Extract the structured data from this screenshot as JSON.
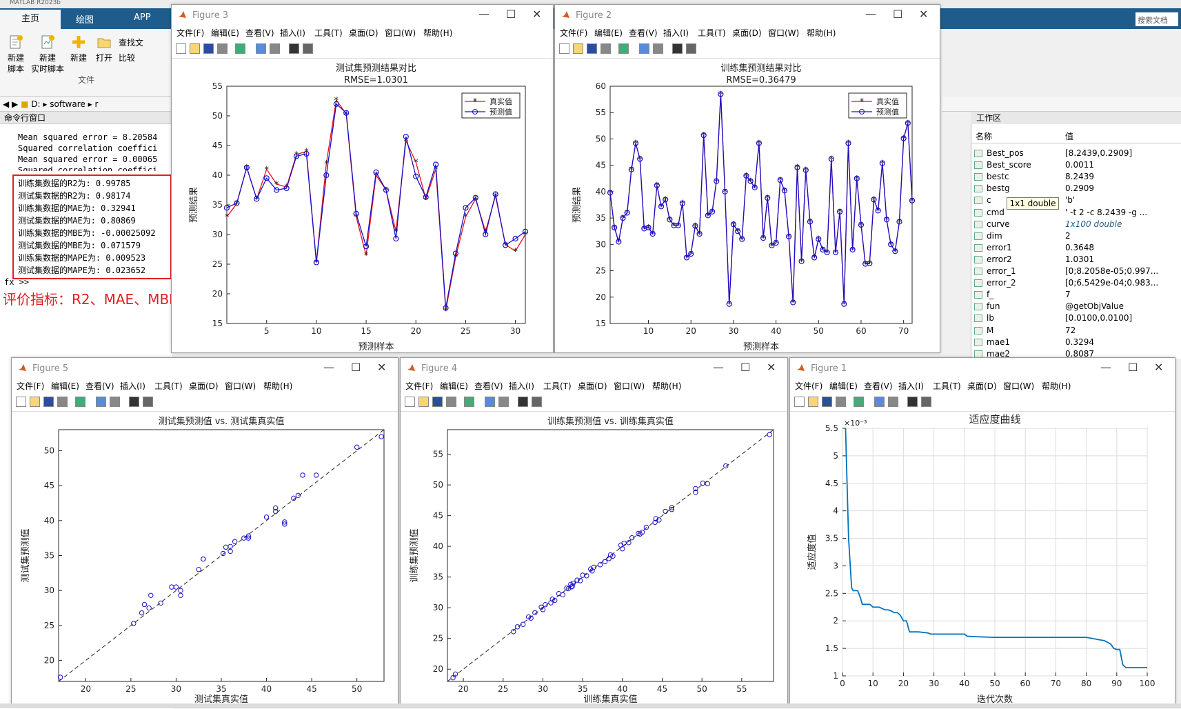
{
  "app": {
    "window_title": "MATLAB R2023b",
    "tabs": [
      "主页",
      "绘图",
      "APP"
    ],
    "ribbon": {
      "new_script": "新建\n脚本",
      "new_live": "新建\n实时脚本",
      "new": "新建",
      "open": "打开",
      "find": "查找文",
      "compare": "比较",
      "section": "文件"
    },
    "search_placeholder": "搜索文档",
    "path": [
      "D:",
      "software",
      "r"
    ]
  },
  "cmd": {
    "title": "命令行窗口",
    "lines": [
      "Mean squared error = 8.20584",
      "Squared correlation coeffici",
      "Mean squared error = 0.00065",
      "Squared correlation coeffici"
    ],
    "metrics": [
      "训练集数据的R2为: 0.99785",
      "测试集数据的R2为: 0.98174",
      "训练集数据的MAE为: 0.32941",
      "测试集数据的MAE为: 0.80869",
      "训练集数据的MBE为: -0.00025092",
      "测试集数据的MBE为: 0.071579",
      "训练集数据的MAPE为: 0.009523",
      "测试集数据的MAPE为: 0.023652"
    ],
    "prompt": "fx >>",
    "annotation": "评价指标：R2、MAE、MBE、MAPE"
  },
  "workspace": {
    "title": "工作区",
    "col_name": "名称",
    "col_value": "值",
    "tooltip": "1x1 double",
    "rows": [
      [
        "Best_pos",
        "[8.2439,0.2909]"
      ],
      [
        "Best_score",
        "0.0011"
      ],
      [
        "bestc",
        "8.2439"
      ],
      [
        "bestg",
        "0.2909"
      ],
      [
        "c",
        "'b'"
      ],
      [
        "cmd",
        "' -t 2  -c 8.2439 -g ..."
      ],
      [
        "curve",
        "1x100 double"
      ],
      [
        "dim",
        "2"
      ],
      [
        "error1",
        "0.3648"
      ],
      [
        "error2",
        "1.0301"
      ],
      [
        "error_1",
        "[0;8.2058e-05;0.997..."
      ],
      [
        "error_2",
        "[0;6.5429e-04;0.983..."
      ],
      [
        "f_",
        "7"
      ],
      [
        "fun",
        "@getObjValue"
      ],
      [
        "lb",
        "[0.0100,0.0100]"
      ],
      [
        "M",
        "72"
      ],
      [
        "mae1",
        "0.3294"
      ],
      [
        "mae2",
        "0.8087"
      ]
    ]
  },
  "figure_menu": [
    "文件(F)",
    "编辑(E)",
    "查看(V)",
    "插入(I)",
    "工具(T)",
    "桌面(D)",
    "窗口(W)",
    "帮助(H)"
  ],
  "figures": {
    "fig3": {
      "window_title": "Figure 3"
    },
    "fig2": {
      "window_title": "Figure 2"
    },
    "fig5": {
      "window_title": "Figure 5"
    },
    "fig4": {
      "window_title": "Figure 4"
    },
    "fig1": {
      "window_title": "Figure 1"
    }
  },
  "colors": {
    "true": "#e8101a",
    "pred": "#1a10c8",
    "curve": "#0072bd",
    "annotation": "#e02020",
    "ribbon": "#1f5c8b"
  },
  "chart_data": [
    {
      "id": "fig3",
      "type": "line",
      "title": "测试集预测结果对比",
      "subtitle": "RMSE=1.0301",
      "xlabel": "预测样本",
      "ylabel": "预测结果",
      "xlim": [
        1,
        31
      ],
      "ylim": [
        15,
        55
      ],
      "xticks": [
        5,
        10,
        15,
        20,
        25,
        30
      ],
      "yticks": [
        15,
        20,
        25,
        30,
        35,
        40,
        45,
        50,
        55
      ],
      "legend": "top-right",
      "series": [
        {
          "name": "真实值",
          "marker": "*",
          "values": [
            33,
            35.2,
            41.3,
            36,
            41,
            38.5,
            38,
            43.5,
            44,
            25.3,
            42,
            52.7,
            50.3,
            33,
            26.5,
            40,
            37.5,
            30.5,
            45.8,
            42.2,
            36,
            41,
            17.2,
            26.2,
            33,
            36,
            30.5,
            36.5,
            28.3,
            27.2,
            30
          ]
        },
        {
          "name": "预测值",
          "marker": "o",
          "values": [
            34.5,
            35.3,
            41.3,
            36,
            39.5,
            37.5,
            37.8,
            43.2,
            43.6,
            25.3,
            40,
            52,
            50.5,
            33.5,
            28,
            40.5,
            37.5,
            29.3,
            46.5,
            39.8,
            36.3,
            41.8,
            17.6,
            26.8,
            34.5,
            36.2,
            30,
            36.8,
            28.2,
            29.3,
            30.5
          ]
        }
      ]
    },
    {
      "id": "fig2",
      "type": "line",
      "title": "训练集预测结果对比",
      "subtitle": "RMSE=0.36479",
      "xlabel": "预测样本",
      "ylabel": "预测结果",
      "xlim": [
        1,
        72
      ],
      "ylim": [
        15,
        60
      ],
      "xticks": [
        10,
        20,
        30,
        40,
        50,
        60,
        70
      ],
      "yticks": [
        15,
        20,
        25,
        30,
        35,
        40,
        45,
        50,
        55,
        60
      ],
      "legend": "top-right",
      "series": [
        {
          "name": "真实值",
          "marker": "*",
          "values": [
            39.8,
            33.2,
            30.5,
            35,
            36,
            44.2,
            49.2,
            46.2,
            33,
            33.2,
            32,
            41.2,
            37.2,
            38.5,
            34.7,
            33.6,
            33.6,
            37.8,
            27.5,
            28.2,
            33.5,
            32,
            50.7,
            35.5,
            36.2,
            42,
            58.5,
            40,
            18.7,
            33.8,
            32.5,
            31,
            43,
            42,
            40.8,
            49.2,
            31.2,
            38.8,
            29.8,
            30.3,
            42.2,
            40.2,
            31.5,
            19,
            44.6,
            26.8,
            44.1,
            34.3,
            27.5,
            31,
            29,
            28.5,
            46.2,
            28.5,
            36.2,
            18.7,
            49.2,
            29,
            42.5,
            33.7,
            26.3,
            26.4,
            38.5,
            36.4,
            45.4,
            34.7,
            30,
            28.7,
            34.3,
            50.1,
            53,
            38.3
          ]
        },
        {
          "name": "预测值",
          "marker": "o",
          "values": [
            39.8,
            33.2,
            30.5,
            35,
            36,
            44.2,
            49.2,
            46.2,
            33,
            33.2,
            32,
            41.2,
            37.2,
            38.5,
            34.7,
            33.6,
            33.6,
            37.8,
            27.5,
            28.2,
            33.5,
            32,
            50.7,
            35.5,
            36.2,
            42,
            58.5,
            40,
            18.7,
            33.8,
            32.5,
            31,
            43,
            42,
            40.8,
            49.2,
            31.2,
            38.8,
            29.8,
            30.3,
            42.2,
            40.2,
            31.5,
            19,
            44.6,
            26.8,
            44.1,
            34.3,
            27.5,
            31,
            29,
            28.5,
            46.2,
            28.5,
            36.2,
            18.7,
            49.2,
            29,
            42.5,
            33.7,
            26.3,
            26.4,
            38.5,
            36.4,
            45.4,
            34.7,
            30,
            28.7,
            34.3,
            50.1,
            53,
            38.3
          ]
        }
      ]
    },
    {
      "id": "fig5",
      "type": "scatter",
      "title": "测试集预测值 vs. 测试集真实值",
      "xlabel": "测试集真实值",
      "ylabel": "测试集预测值",
      "xlim": [
        17,
        53
      ],
      "ylim": [
        17,
        53
      ],
      "xticks": [
        20,
        25,
        30,
        35,
        40,
        45,
        50
      ],
      "yticks": [
        20,
        25,
        30,
        35,
        40,
        45,
        50
      ],
      "x": [
        17.2,
        25.3,
        26.2,
        26.5,
        27,
        27.2,
        28.3,
        29.5,
        30,
        30.5,
        30.5,
        32.5,
        33,
        33,
        35.2,
        35.5,
        36,
        36,
        36.5,
        37.5,
        38,
        38,
        40,
        41,
        41,
        42,
        42,
        43,
        43.5,
        44,
        45.5,
        50,
        52.7
      ],
      "y": [
        17.6,
        25.3,
        26.8,
        28,
        27.5,
        29.3,
        28.2,
        30.5,
        30.5,
        29.3,
        30,
        33,
        34.5,
        34.5,
        35.3,
        36.2,
        36.3,
        35.6,
        37,
        37.5,
        37.8,
        37.5,
        40.5,
        41.8,
        41.3,
        39.8,
        39.5,
        43.2,
        43.6,
        46.5,
        46.5,
        50.5,
        52
      ]
    },
    {
      "id": "fig4",
      "type": "scatter",
      "title": "训练集预测值 vs. 训练集真实值",
      "xlabel": "训练集真实值",
      "ylabel": "训练集预测值",
      "xlim": [
        18,
        59
      ],
      "ylim": [
        18,
        59
      ],
      "xticks": [
        20,
        25,
        30,
        35,
        40,
        45,
        50,
        55
      ],
      "yticks": [
        20,
        25,
        30,
        35,
        40,
        45,
        50,
        55
      ],
      "x": [
        18.7,
        19,
        26.3,
        26.8,
        27.5,
        28.2,
        28.5,
        29,
        29.8,
        30,
        30.3,
        31,
        31.2,
        31.5,
        32,
        32.5,
        33,
        33.2,
        33.5,
        33.6,
        33.7,
        33.8,
        34.3,
        34.7,
        35,
        35.5,
        36,
        36.2,
        36.4,
        37.2,
        37.8,
        38.3,
        38.5,
        38.8,
        39.8,
        40,
        40.2,
        40.8,
        41.2,
        42,
        42.2,
        42.5,
        43,
        44.1,
        44.2,
        44.6,
        45.4,
        46.2,
        46.2,
        49.2,
        49.2,
        50.1,
        50.7,
        53,
        58.5
      ],
      "y": [
        18.6,
        19.2,
        26.1,
        26.9,
        27.3,
        28.5,
        28.3,
        29.2,
        30.1,
        29.7,
        30.5,
        30.8,
        31.4,
        31.2,
        32.3,
        32.1,
        33.2,
        33.1,
        33.8,
        33.4,
        33.5,
        34,
        34.5,
        34.4,
        35.3,
        35.2,
        36.3,
        36,
        36.6,
        37,
        37.5,
        38,
        38.6,
        38.4,
        40.2,
        39.6,
        40.5,
        40.6,
        41.4,
        42.1,
        42,
        42.3,
        43.1,
        43.9,
        44.5,
        44.3,
        45.7,
        46.3,
        46,
        48.8,
        49.4,
        50.3,
        50.2,
        53.1,
        58.2
      ]
    },
    {
      "id": "fig1",
      "type": "line",
      "title": "适应度曲线",
      "xlabel": "迭代次数",
      "ylabel": "适应度值",
      "xlim": [
        0,
        100
      ],
      "ylim": [
        1,
        5.5
      ],
      "exponent_label": "×10⁻³",
      "grid": true,
      "xticks": [
        0,
        10,
        20,
        30,
        40,
        50,
        60,
        70,
        80,
        90,
        100
      ],
      "yticks": [
        1,
        1.5,
        2,
        2.5,
        3,
        3.5,
        4,
        4.5,
        5,
        5.5
      ],
      "x": [
        1,
        2,
        3,
        3.5,
        4,
        5,
        6,
        6.5,
        7,
        8,
        9,
        10,
        12,
        14,
        15,
        16,
        17,
        18,
        19,
        20,
        21,
        22,
        23,
        24,
        25,
        28,
        29,
        30,
        40,
        41,
        45,
        50,
        60,
        70,
        80,
        82,
        84,
        86,
        88,
        89,
        90,
        91,
        92,
        93,
        95,
        100
      ],
      "y": [
        5.5,
        3.5,
        2.6,
        2.55,
        2.55,
        2.55,
        2.4,
        2.3,
        2.3,
        2.3,
        2.3,
        2.25,
        2.25,
        2.2,
        2.2,
        2.18,
        2.15,
        2.15,
        2.1,
        2.0,
        2.0,
        1.8,
        1.8,
        1.8,
        1.8,
        1.78,
        1.76,
        1.76,
        1.76,
        1.72,
        1.71,
        1.7,
        1.7,
        1.7,
        1.7,
        1.68,
        1.66,
        1.64,
        1.58,
        1.5,
        1.48,
        1.48,
        1.2,
        1.15,
        1.15,
        1.15
      ]
    }
  ]
}
